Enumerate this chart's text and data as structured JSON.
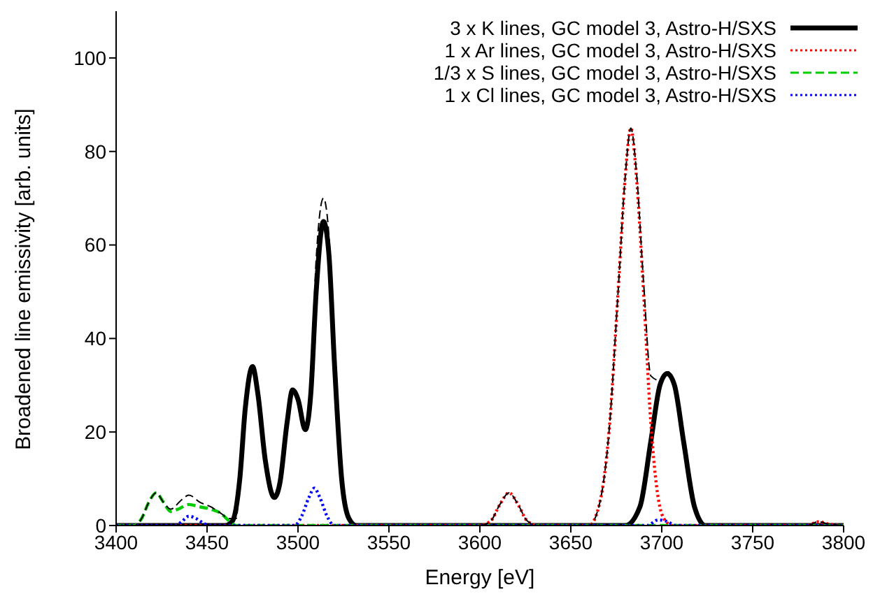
{
  "chart_data": {
    "type": "line",
    "xlabel": "Energy [eV]",
    "ylabel": "Broadened line emissivity [arb. units]",
    "xlim": [
      3400,
      3800
    ],
    "xticks": [
      3400,
      3450,
      3500,
      3550,
      3600,
      3650,
      3700,
      3750,
      3800
    ],
    "ylim": [
      0,
      110
    ],
    "yticks": [
      0,
      20,
      40,
      60,
      80,
      100
    ],
    "grid": false,
    "legend": "top right",
    "marker": "none",
    "series": [
      {
        "name": "3 x K lines, GC model 3, Astro-H/SXS",
        "color": "#000000",
        "line_style": "solid",
        "x": [
          3400,
          3460,
          3464,
          3468,
          3471,
          3475,
          3478,
          3482,
          3487,
          3490,
          3494,
          3497,
          3500,
          3504,
          3507,
          3510,
          3514,
          3517,
          3520,
          3524,
          3528,
          3532,
          3680,
          3688,
          3694,
          3699,
          3703,
          3707,
          3712,
          3718,
          3724,
          3800
        ],
        "values": [
          0,
          0,
          1,
          10,
          25,
          34,
          28,
          14,
          6,
          9,
          22,
          29,
          27,
          20.5,
          28,
          50,
          65,
          58,
          35,
          10,
          1.5,
          0,
          0,
          4,
          18,
          30,
          32.5,
          30,
          18,
          4,
          0,
          0
        ]
      },
      {
        "name": "1 x Ar lines, GC model 3, Astro-H/SXS",
        "color": "#ff0000",
        "line_style": "dotted",
        "x": [
          3400,
          3600,
          3606,
          3611,
          3616,
          3621,
          3626,
          3632,
          3660,
          3666,
          3671,
          3676,
          3680,
          3683,
          3686,
          3690,
          3694,
          3698,
          3702,
          3706,
          3780,
          3786,
          3792,
          3800
        ],
        "values": [
          0,
          0,
          1,
          4.5,
          7,
          4.5,
          1,
          0,
          0,
          5,
          20,
          50,
          75,
          85,
          75,
          50,
          22,
          6,
          1,
          0,
          0,
          0.8,
          0.3,
          0
        ]
      },
      {
        "name": "1/3 x S lines, GC model 3, Astro-H/SXS",
        "color": "#00cc00",
        "line_style": "dashed",
        "x": [
          3400,
          3410,
          3414,
          3418,
          3422,
          3426,
          3430,
          3434,
          3440,
          3446,
          3452,
          3458,
          3462,
          3466,
          3800
        ],
        "values": [
          0,
          0,
          1.5,
          5,
          7,
          5,
          3,
          3.5,
          4.5,
          4,
          3.5,
          2.5,
          1,
          0,
          0
        ]
      },
      {
        "name": "1 x Cl lines, GC model 3, Astro-H/SXS",
        "color": "#0000ff",
        "line_style": "dotted",
        "x": [
          3400,
          3432,
          3436,
          3440,
          3444,
          3448,
          3452,
          3498,
          3502,
          3506,
          3509,
          3512,
          3516,
          3520,
          3692,
          3698,
          3702,
          3708,
          3800
        ],
        "values": [
          0,
          0,
          0.8,
          2,
          1.5,
          0.5,
          0,
          0,
          2,
          6,
          8,
          6,
          2,
          0,
          0,
          1.2,
          1,
          0,
          0
        ]
      },
      {
        "color": "#000000",
        "line_style": "dashed",
        "x": [
          3400,
          3410,
          3414,
          3418,
          3422,
          3426,
          3430,
          3436,
          3440,
          3446,
          3452,
          3458,
          3462,
          3466,
          3468,
          3471,
          3475,
          3478,
          3482,
          3487,
          3490,
          3494,
          3497,
          3500,
          3504,
          3507,
          3510,
          3514,
          3517,
          3520,
          3524,
          3528,
          3532,
          3600,
          3606,
          3611,
          3616,
          3621,
          3626,
          3632,
          3660,
          3666,
          3671,
          3676,
          3680,
          3683,
          3686,
          3690,
          3694,
          3699,
          3703,
          3707,
          3712,
          3718,
          3724,
          3780,
          3786,
          3792,
          3800
        ],
        "values": [
          0,
          0,
          1.5,
          5,
          7,
          5,
          3.5,
          5.5,
          6.5,
          5,
          4,
          2.5,
          1.5,
          1.5,
          10,
          25,
          34,
          28,
          14,
          6,
          9,
          22,
          29,
          27,
          21,
          30,
          57,
          70,
          62,
          37,
          10,
          1.5,
          0,
          0,
          1,
          4.5,
          7,
          4.5,
          1,
          0,
          0,
          5,
          20,
          50,
          75,
          85,
          76,
          52,
          32,
          31,
          33,
          30,
          18,
          4,
          0,
          0,
          0.8,
          0.3,
          0
        ]
      }
    ]
  }
}
